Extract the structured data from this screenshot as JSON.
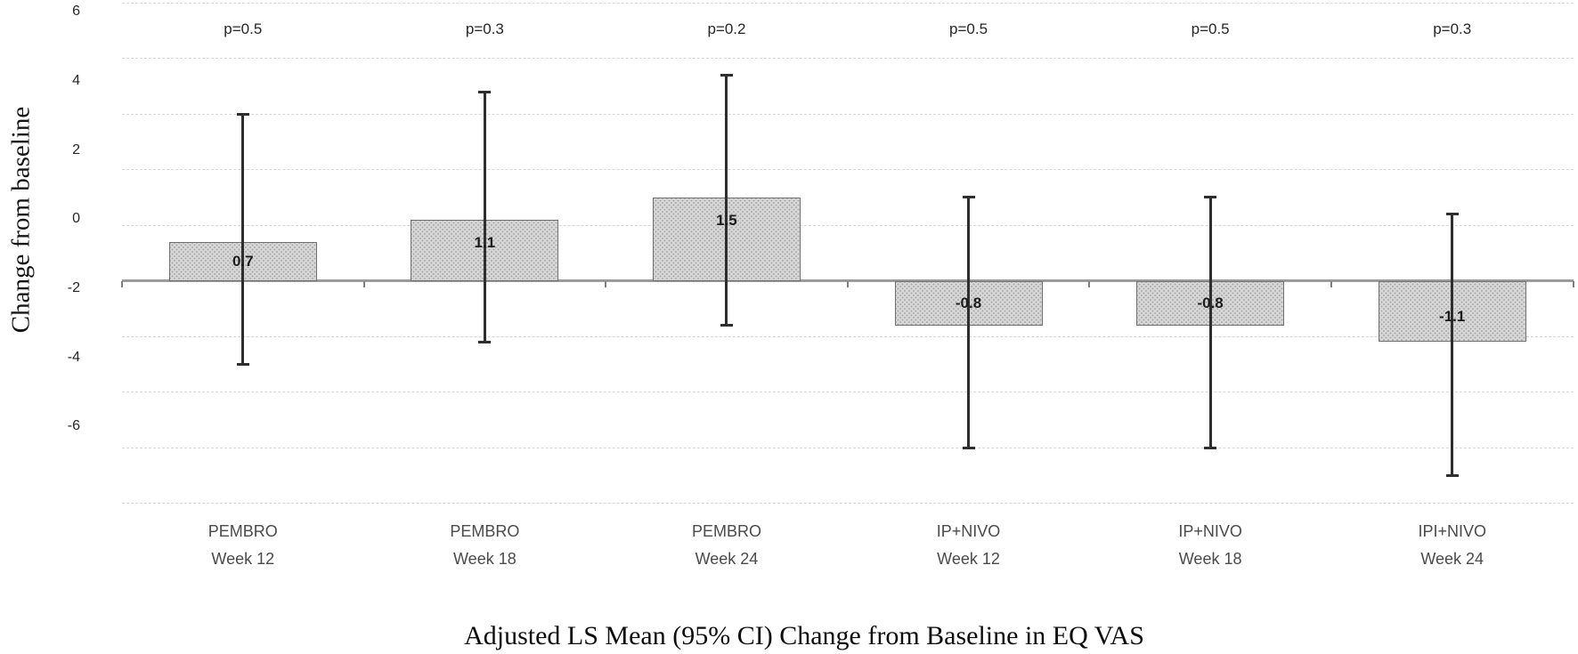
{
  "chart_data": {
    "type": "bar",
    "title": "Adjusted LS Mean (95% CI) Change from Baseline in EQ VAS",
    "ylabel": "Change from baseline",
    "y_tick_values": [
      6,
      4,
      2,
      0,
      -2,
      -4,
      -6
    ],
    "gridline_values": [
      5,
      4,
      3,
      2,
      1,
      -1,
      -2,
      -3,
      -4
    ],
    "ylim": [
      -4.5,
      5.2
    ],
    "grid": "on",
    "legend": "none",
    "categories": [
      [
        "PEMBRO",
        "Week 12"
      ],
      [
        "PEMBRO",
        "Week 18"
      ],
      [
        "PEMBRO",
        "Week 24"
      ],
      [
        "IP+NIVO",
        "Week 12"
      ],
      [
        "IP+NIVO",
        "Week 18"
      ],
      [
        "IPI+NIVO",
        "Week 24"
      ]
    ],
    "values": [
      0.7,
      1.1,
      1.5,
      -0.8,
      -0.8,
      -1.1
    ],
    "value_labels": [
      "0.7",
      "1.1",
      "1.5",
      "-0.8",
      "-0.8",
      "-1.1"
    ],
    "ci_low": [
      -1.5,
      -1.1,
      -0.8,
      -3.0,
      -3.0,
      -3.5
    ],
    "ci_high": [
      3.0,
      3.4,
      3.7,
      1.5,
      1.5,
      1.2
    ],
    "p_labels": [
      "p=0.5",
      "p=0.3",
      "p=0.2",
      "p=0.5",
      "p=0.5",
      "p=0.3"
    ],
    "colors": {
      "bar_fill": "#d7d7d7",
      "bar_dot": "#a9a9a9",
      "bar_border": "#6f6f6f",
      "error_bar": "#2e2e2e",
      "axis_line": "#9b9b9b",
      "axis_tick": "#7f7f7f",
      "gridline": "#d6d6d6"
    }
  }
}
